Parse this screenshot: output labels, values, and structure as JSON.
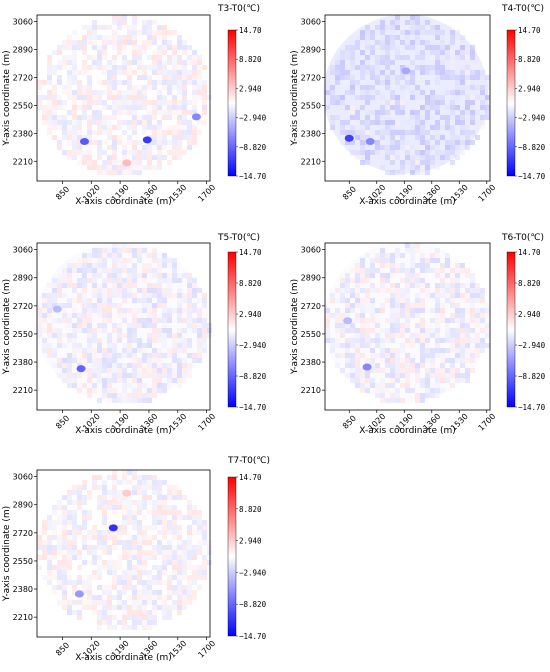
{
  "colors": {
    "max": "#ff0000",
    "mid": "#ffffff",
    "min": "#0000ff",
    "frame": "#000000"
  },
  "chart_data": [
    {
      "type": "heatmap",
      "title": "T3-T0(℃)",
      "xlabel": "X-axis coordinate (m)",
      "ylabel": "Y-axis coordinate (m)",
      "x_ticks": [
        "850",
        "1020",
        "1190",
        "1360",
        "1530",
        "1700"
      ],
      "y_ticks": [
        "3060",
        "2890",
        "2720",
        "2550",
        "2380",
        "2210"
      ],
      "xlim": [
        700,
        1720
      ],
      "ylim": [
        2090,
        3100
      ],
      "colorbar_ticks": [
        "14.70",
        "8.820",
        "2.940",
        "−2.940",
        "−8.820",
        "−14.70"
      ],
      "vmin": -14.7,
      "vmax": 14.7,
      "background": 0,
      "hotspots": [
        {
          "x": 980,
          "y": 2330,
          "v": -9.5
        },
        {
          "x": 1350,
          "y": 2340,
          "v": -11.5
        },
        {
          "x": 1640,
          "y": 2480,
          "v": -7
        },
        {
          "x": 1230,
          "y": 2200,
          "v": 4
        }
      ]
    },
    {
      "type": "heatmap",
      "title": "T4-T0(℃)",
      "xlabel": "X-axis coordinate (m)",
      "ylabel": "Y-axis coordinate (m)",
      "x_ticks": [
        "850",
        "1020",
        "1190",
        "1360",
        "1530",
        "1700"
      ],
      "y_ticks": [
        "3060",
        "2890",
        "2720",
        "2550",
        "2380",
        "2210"
      ],
      "xlim": [
        700,
        1720
      ],
      "ylim": [
        2090,
        3100
      ],
      "colorbar_ticks": [
        "14.70",
        "8.820",
        "2.940",
        "−2.940",
        "−8.820",
        "−14.70"
      ],
      "vmin": -14.7,
      "vmax": 14.7,
      "background": -2,
      "hotspots": [
        {
          "x": 850,
          "y": 2350,
          "v": -11
        },
        {
          "x": 980,
          "y": 2330,
          "v": -7
        },
        {
          "x": 1200,
          "y": 2760,
          "v": -5
        }
      ]
    },
    {
      "type": "heatmap",
      "title": "T5-T0(℃)",
      "xlabel": "X-axis coordinate (m)",
      "ylabel": "Y-axis coordinate (m)",
      "x_ticks": [
        "850",
        "1020",
        "1190",
        "1360",
        "1530",
        "1700"
      ],
      "y_ticks": [
        "3060",
        "2890",
        "2720",
        "2550",
        "2380",
        "2210"
      ],
      "xlim": [
        700,
        1720
      ],
      "ylim": [
        2090,
        3100
      ],
      "colorbar_ticks": [
        "14.70",
        "8.820",
        "2.940",
        "−2.940",
        "−8.820",
        "−14.70"
      ],
      "vmin": -14.7,
      "vmax": 14.7,
      "background": -0.5,
      "hotspots": [
        {
          "x": 960,
          "y": 2340,
          "v": -9
        },
        {
          "x": 820,
          "y": 2700,
          "v": -4
        }
      ]
    },
    {
      "type": "heatmap",
      "title": "T6-T0(℃)",
      "xlabel": "X-axis coordinate (m)",
      "ylabel": "Y-axis coordinate (m)",
      "x_ticks": [
        "850",
        "1020",
        "1190",
        "1360",
        "1530",
        "1700"
      ],
      "y_ticks": [
        "3060",
        "2890",
        "2720",
        "2550",
        "2380",
        "2210"
      ],
      "xlim": [
        700,
        1720
      ],
      "ylim": [
        2090,
        3100
      ],
      "colorbar_ticks": [
        "14.70",
        "8.820",
        "2.940",
        "−2.940",
        "−8.820",
        "−14.70"
      ],
      "vmin": -14.7,
      "vmax": 14.7,
      "background": -0.5,
      "hotspots": [
        {
          "x": 960,
          "y": 2350,
          "v": -7
        },
        {
          "x": 840,
          "y": 2630,
          "v": -4
        }
      ]
    },
    {
      "type": "heatmap",
      "title": "T7-T0(℃)",
      "xlabel": "X-axis coordinate (m)",
      "ylabel": "Y-axis coordinate (m)",
      "x_ticks": [
        "850",
        "1020",
        "1190",
        "1360",
        "1530",
        "1700"
      ],
      "y_ticks": [
        "3060",
        "2890",
        "2720",
        "2550",
        "2380",
        "2210"
      ],
      "xlim": [
        700,
        1720
      ],
      "ylim": [
        2090,
        3100
      ],
      "colorbar_ticks": [
        "14.70",
        "8.820",
        "2.940",
        "−2.940",
        "−8.820",
        "−14.70"
      ],
      "vmin": -14.7,
      "vmax": 14.7,
      "background": 0,
      "hotspots": [
        {
          "x": 1150,
          "y": 2750,
          "v": -12
        },
        {
          "x": 950,
          "y": 2350,
          "v": -6
        },
        {
          "x": 1230,
          "y": 2960,
          "v": 3
        }
      ]
    }
  ]
}
